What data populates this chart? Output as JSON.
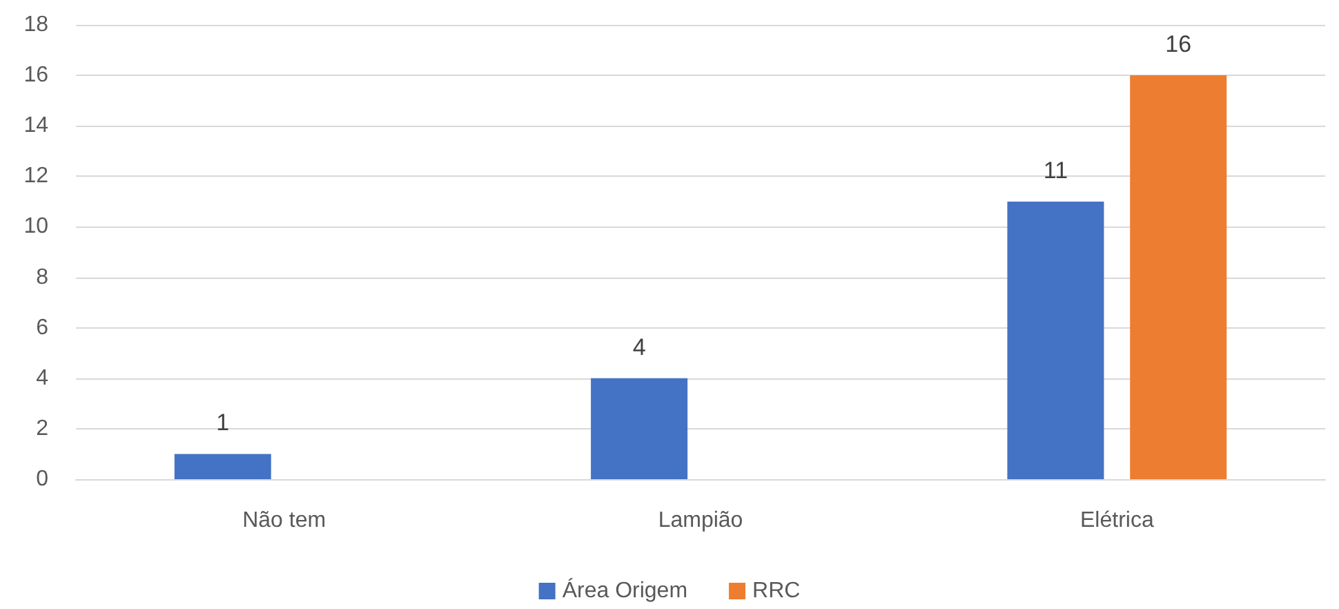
{
  "chart_data": {
    "type": "bar",
    "categories": [
      "Não tem",
      "Lampião",
      "Elétrica"
    ],
    "series": [
      {
        "name": "Área Origem",
        "color": "#4472c4",
        "values": [
          1,
          4,
          11
        ]
      },
      {
        "name": "RRC",
        "color": "#ed7d31",
        "values": [
          null,
          null,
          16
        ]
      }
    ],
    "ylim": [
      0,
      18
    ],
    "yticks": [
      0,
      2,
      4,
      6,
      8,
      10,
      12,
      14,
      16,
      18
    ],
    "grid": "y",
    "legend": "bottom",
    "data_labels": true
  }
}
